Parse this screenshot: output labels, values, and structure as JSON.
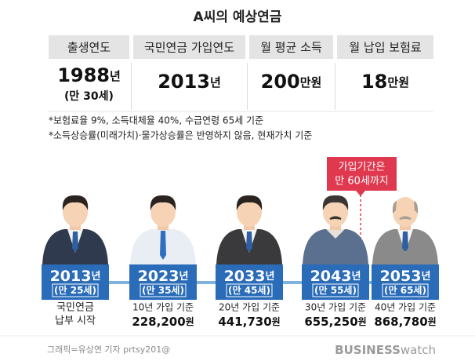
{
  "title": "A씨의 예상연금",
  "table": {
    "headers": [
      "출생연도",
      "국민연금 가입연도",
      "월 평균 소득",
      "월 납입 보험료"
    ],
    "cells": [
      {
        "number": "1988",
        "unit": "년",
        "note": "(만 30세)"
      },
      {
        "number": "2013",
        "unit": "년"
      },
      {
        "number": "200",
        "unit": "만원"
      },
      {
        "number": "18",
        "unit": "만원"
      }
    ]
  },
  "notes": [
    "*보험료율 9%, 소득대체율 40%, 수급연령 65세 기준",
    "*소득상승률(미래가치)·물가상승률은 반영하지 않음, 현재가치 기준"
  ],
  "callout": {
    "lines": [
      "가입기간은",
      "만 60세까지"
    ]
  },
  "timeline": [
    {
      "year": "2013",
      "unit": "년",
      "age": "(만 25세)",
      "lines": [
        "국민연금",
        "납부 시작"
      ]
    },
    {
      "year": "2023",
      "unit": "년",
      "age": "(만 35세)",
      "basis": "10년 가입 기준",
      "amount": "228,200",
      "amount_unit": "원"
    },
    {
      "year": "2033",
      "unit": "년",
      "age": "(만 45세)",
      "basis": "20년 가입 기준",
      "amount": "441,730",
      "amount_unit": "원"
    },
    {
      "year": "2043",
      "unit": "년",
      "age": "(만 55세)",
      "basis": "30년 가입 기준",
      "amount": "655,250",
      "amount_unit": "원"
    },
    {
      "year": "2053",
      "unit": "년",
      "age": "(만 65세)",
      "basis": "40년 가입 기준",
      "amount": "868,780",
      "amount_unit": "원"
    }
  ],
  "footer": {
    "credit": "그래픽=유상연 기자 prtsy201@",
    "logo_bold": "BUSINESS",
    "logo_light": "watch"
  }
}
